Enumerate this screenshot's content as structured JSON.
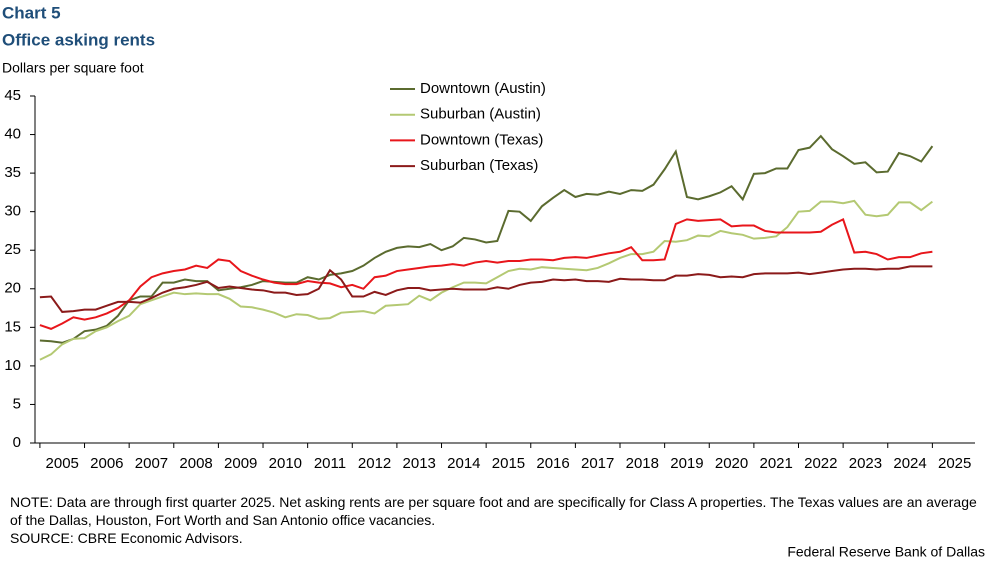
{
  "chart_data": {
    "type": "line",
    "title": "Chart 5",
    "subtitle": "Office asking rents",
    "y_label": "Dollars per square foot",
    "note": "NOTE: Data are through first quarter 2025. Net asking rents are per square foot and are specifically for Class A properties. The Texas values are an average of the Dallas, Houston, Fort Worth and San Antonio office vacancies.",
    "source": "SOURCE: CBRE Economic Advisors.",
    "credit": "Federal Reserve Bank of Dallas",
    "x": [
      2005,
      2005.25,
      2005.5,
      2005.75,
      2006,
      2006.25,
      2006.5,
      2006.75,
      2007,
      2007.25,
      2007.5,
      2007.75,
      2008,
      2008.25,
      2008.5,
      2008.75,
      2009,
      2009.25,
      2009.5,
      2009.75,
      2010,
      2010.25,
      2010.5,
      2010.75,
      2011,
      2011.25,
      2011.5,
      2011.75,
      2012,
      2012.25,
      2012.5,
      2012.75,
      2013,
      2013.25,
      2013.5,
      2013.75,
      2014,
      2014.25,
      2014.5,
      2014.75,
      2015,
      2015.25,
      2015.5,
      2015.75,
      2016,
      2016.25,
      2016.5,
      2016.75,
      2017,
      2017.25,
      2017.5,
      2017.75,
      2018,
      2018.25,
      2018.5,
      2018.75,
      2019,
      2019.25,
      2019.5,
      2019.75,
      2020,
      2020.25,
      2020.5,
      2020.75,
      2021,
      2021.25,
      2021.5,
      2021.75,
      2022,
      2022.25,
      2022.5,
      2022.75,
      2023,
      2023.25,
      2023.5,
      2023.75,
      2024,
      2024.25,
      2024.5,
      2024.75,
      2025
    ],
    "series": [
      {
        "name": "Downtown (Austin)",
        "color": "#5b6b2f",
        "values": [
          13.3,
          13.2,
          13.0,
          13.5,
          14.5,
          14.7,
          15.2,
          16.5,
          18.5,
          19.0,
          19.0,
          20.8,
          20.8,
          21.2,
          21.0,
          21.0,
          19.8,
          20.0,
          20.2,
          20.5,
          21.0,
          20.9,
          20.8,
          20.8,
          21.5,
          21.2,
          21.8,
          22.0,
          22.3,
          23.0,
          24.0,
          24.8,
          25.3,
          25.5,
          25.4,
          25.8,
          25.0,
          25.5,
          26.6,
          26.4,
          26.0,
          26.2,
          30.1,
          30.0,
          28.8,
          30.7,
          31.8,
          32.8,
          31.9,
          32.3,
          32.2,
          32.6,
          32.3,
          32.8,
          32.7,
          33.5,
          35.5,
          37.8,
          31.9,
          31.6,
          32.0,
          32.5,
          33.3,
          31.6,
          34.9,
          35.0,
          35.6,
          35.6,
          38.0,
          38.3,
          39.8,
          38.1,
          37.2,
          36.2,
          36.4,
          35.1,
          35.2,
          37.6,
          37.2,
          36.5,
          38.5
        ]
      },
      {
        "name": "Suburban (Austin)",
        "color": "#b4c973",
        "values": [
          10.8,
          11.5,
          12.8,
          13.5,
          13.6,
          14.5,
          15.0,
          15.8,
          16.5,
          18.0,
          18.5,
          19.0,
          19.5,
          19.3,
          19.4,
          19.3,
          19.3,
          18.7,
          17.7,
          17.6,
          17.3,
          16.9,
          16.3,
          16.7,
          16.6,
          16.1,
          16.2,
          16.9,
          17.0,
          17.1,
          16.8,
          17.8,
          17.9,
          18.0,
          19.1,
          18.5,
          19.5,
          20.2,
          20.8,
          20.8,
          20.7,
          21.5,
          22.3,
          22.6,
          22.5,
          22.8,
          22.7,
          22.6,
          22.5,
          22.4,
          22.7,
          23.3,
          24.0,
          24.5,
          24.5,
          24.8,
          26.2,
          26.1,
          26.3,
          26.9,
          26.8,
          27.5,
          27.2,
          27.0,
          26.5,
          26.6,
          26.8,
          28.0,
          30.0,
          30.1,
          31.3,
          31.3,
          31.1,
          31.4,
          29.6,
          29.4,
          29.6,
          31.2,
          31.2,
          30.2,
          31.3
        ]
      },
      {
        "name": "Downtown (Texas)",
        "color": "#e8161b",
        "values": [
          15.3,
          14.8,
          15.5,
          16.3,
          16.0,
          16.3,
          16.8,
          17.5,
          18.5,
          20.3,
          21.5,
          22.0,
          22.3,
          22.5,
          23.0,
          22.7,
          23.8,
          23.6,
          22.3,
          21.7,
          21.2,
          20.8,
          20.6,
          20.6,
          21.0,
          20.8,
          20.7,
          20.2,
          20.5,
          20.0,
          21.5,
          21.7,
          22.3,
          22.5,
          22.7,
          22.9,
          23.0,
          23.2,
          23.0,
          23.4,
          23.6,
          23.4,
          23.6,
          23.6,
          23.8,
          23.8,
          23.7,
          24.0,
          24.1,
          24.0,
          24.3,
          24.6,
          24.8,
          25.4,
          23.7,
          23.7,
          23.8,
          28.4,
          29.0,
          28.8,
          28.9,
          29.0,
          28.1,
          28.2,
          28.2,
          27.5,
          27.3,
          27.3,
          27.3,
          27.3,
          27.4,
          28.3,
          29.0,
          24.7,
          24.8,
          24.5,
          23.8,
          24.1,
          24.1,
          24.6,
          24.8
        ]
      },
      {
        "name": "Suburban (Texas)",
        "color": "#8b1a1a",
        "values": [
          18.9,
          19.0,
          17.0,
          17.1,
          17.3,
          17.3,
          17.8,
          18.3,
          18.3,
          18.2,
          18.8,
          19.5,
          20.0,
          20.2,
          20.5,
          20.9,
          20.1,
          20.3,
          20.1,
          19.9,
          19.8,
          19.5,
          19.5,
          19.2,
          19.3,
          20.0,
          22.4,
          21.2,
          19.0,
          19.0,
          19.6,
          19.2,
          19.8,
          20.1,
          20.1,
          19.8,
          19.9,
          20.0,
          19.9,
          19.9,
          19.9,
          20.2,
          20.0,
          20.5,
          20.8,
          20.9,
          21.2,
          21.1,
          21.2,
          21.0,
          21.0,
          20.9,
          21.3,
          21.2,
          21.2,
          21.1,
          21.1,
          21.7,
          21.7,
          21.9,
          21.8,
          21.5,
          21.6,
          21.5,
          21.9,
          22.0,
          22.0,
          22.0,
          22.1,
          21.9,
          22.1,
          22.3,
          22.5,
          22.6,
          22.6,
          22.5,
          22.6,
          22.6,
          22.9,
          22.9,
          22.9
        ]
      }
    ],
    "xlim": [
      2004.89,
      2026
    ],
    "xticks": [
      2005,
      2006,
      2007,
      2008,
      2009,
      2010,
      2011,
      2012,
      2013,
      2014,
      2015,
      2016,
      2017,
      2018,
      2019,
      2020,
      2021,
      2022,
      2023,
      2024,
      2025
    ],
    "ylim": [
      0,
      45
    ],
    "yticks": [
      0,
      5,
      10,
      15,
      20,
      25,
      30,
      35,
      40,
      45
    ],
    "grid": false
  }
}
